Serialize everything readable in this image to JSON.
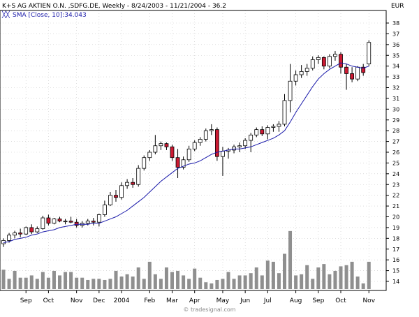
{
  "header": {
    "title": "K+S AG AKTIEN O.N. ,SDFG.DE, Weekly - 8/24/2003 - 11/21/2004 - 36.2",
    "sma_label": "SMA [Close, 10]:34.043",
    "currency": "EUR",
    "watermark": "© tradesignal.com"
  },
  "colors": {
    "up_candle": "#ffffff",
    "down_candle": "#cc1a33",
    "candle_outline": "#000000",
    "sma_line": "#1a1aaa",
    "volume_bar": "#8f8f8f",
    "grid": "#c8c8c8",
    "axis_label": "#000000",
    "sma_label": "#1a1aaa"
  },
  "chart_data": {
    "type": "candlestick",
    "title": "K+S AG AKTIEN O.N. ,SDFG.DE, Weekly - 8/24/2003 - 11/21/2004 - 36.2",
    "ylabel": "EUR",
    "ylim": [
      13,
      39
    ],
    "y_ticks": [
      14,
      15,
      16,
      17,
      18,
      19,
      20,
      21,
      22,
      23,
      24,
      25,
      26,
      27,
      28,
      29,
      30,
      31,
      32,
      33,
      34,
      35,
      36,
      37,
      38
    ],
    "x_tick_labels": [
      {
        "label": "Sep",
        "week": 4
      },
      {
        "label": "Oct",
        "week": 8
      },
      {
        "label": "Nov",
        "week": 13
      },
      {
        "label": "Dec",
        "week": 17
      },
      {
        "label": "2004",
        "week": 21
      },
      {
        "label": "Feb",
        "week": 26
      },
      {
        "label": "Mar",
        "week": 30
      },
      {
        "label": "Apr",
        "week": 34
      },
      {
        "label": "May",
        "week": 39
      },
      {
        "label": "Jun",
        "week": 43
      },
      {
        "label": "Jul",
        "week": 47
      },
      {
        "label": "Aug",
        "week": 52
      },
      {
        "label": "Sep",
        "week": 56
      },
      {
        "label": "Oct",
        "week": 60
      },
      {
        "label": "Nov",
        "week": 65
      }
    ],
    "grid": true,
    "series": [
      {
        "name": "K+S AG AKTIEN O.N.",
        "kind": "ohlc",
        "ohlc": [
          [
            17.5,
            18.0,
            17.2,
            17.8
          ],
          [
            17.8,
            18.5,
            17.6,
            18.3
          ],
          [
            18.3,
            18.7,
            18.0,
            18.5
          ],
          [
            18.5,
            18.9,
            18.1,
            18.4
          ],
          [
            18.4,
            19.1,
            18.3,
            19.0
          ],
          [
            19.0,
            19.3,
            18.4,
            18.6
          ],
          [
            18.6,
            19.1,
            18.5,
            18.9
          ],
          [
            18.9,
            20.1,
            18.8,
            19.9
          ],
          [
            19.9,
            20.2,
            19.2,
            19.4
          ],
          [
            19.4,
            19.9,
            19.3,
            19.8
          ],
          [
            19.8,
            20.0,
            19.5,
            19.6
          ],
          [
            19.6,
            19.8,
            19.3,
            19.6
          ],
          [
            19.6,
            20.0,
            19.4,
            19.5
          ],
          [
            19.5,
            19.8,
            19.0,
            19.2
          ],
          [
            19.2,
            19.6,
            19.0,
            19.4
          ],
          [
            19.4,
            19.8,
            19.2,
            19.6
          ],
          [
            19.6,
            19.9,
            19.2,
            19.5
          ],
          [
            19.5,
            20.3,
            19.1,
            20.2
          ],
          [
            20.2,
            21.5,
            20.0,
            21.1
          ],
          [
            21.1,
            22.3,
            21.0,
            22.0
          ],
          [
            22.0,
            22.5,
            21.4,
            21.8
          ],
          [
            21.8,
            23.2,
            21.6,
            22.9
          ],
          [
            22.9,
            23.5,
            22.6,
            23.2
          ],
          [
            23.2,
            23.6,
            22.7,
            23.0
          ],
          [
            23.0,
            24.8,
            22.8,
            24.5
          ],
          [
            24.5,
            25.7,
            24.3,
            25.5
          ],
          [
            25.5,
            26.2,
            25.2,
            26.0
          ],
          [
            26.0,
            27.6,
            25.8,
            26.6
          ],
          [
            26.6,
            27.0,
            26.2,
            26.8
          ],
          [
            26.8,
            26.9,
            26.2,
            26.5
          ],
          [
            26.5,
            26.7,
            25.2,
            25.5
          ],
          [
            25.5,
            26.3,
            23.6,
            24.6
          ],
          [
            24.6,
            25.6,
            24.4,
            25.3
          ],
          [
            25.3,
            26.6,
            25.1,
            26.3
          ],
          [
            26.3,
            27.1,
            26.1,
            26.9
          ],
          [
            26.9,
            27.4,
            26.6,
            27.2
          ],
          [
            27.2,
            28.2,
            27.0,
            28.0
          ],
          [
            28.0,
            28.6,
            27.6,
            28.1
          ],
          [
            28.1,
            28.3,
            25.2,
            25.6
          ],
          [
            25.6,
            26.5,
            23.8,
            26.1
          ],
          [
            26.1,
            26.4,
            25.4,
            26.2
          ],
          [
            26.2,
            26.7,
            25.9,
            26.5
          ],
          [
            26.5,
            26.9,
            26.0,
            26.6
          ],
          [
            26.6,
            27.3,
            26.3,
            27.1
          ],
          [
            27.1,
            27.8,
            26.0,
            27.6
          ],
          [
            27.6,
            28.3,
            27.4,
            28.1
          ],
          [
            28.1,
            28.4,
            27.5,
            27.7
          ],
          [
            27.7,
            28.5,
            27.2,
            28.3
          ],
          [
            28.3,
            28.6,
            27.9,
            28.4
          ],
          [
            28.4,
            28.9,
            27.9,
            28.6
          ],
          [
            28.6,
            31.4,
            28.4,
            30.8
          ],
          [
            30.8,
            34.2,
            29.7,
            32.6
          ],
          [
            32.6,
            33.6,
            32.2,
            33.2
          ],
          [
            33.2,
            34.1,
            32.9,
            33.5
          ],
          [
            33.5,
            34.2,
            33.1,
            33.8
          ],
          [
            33.8,
            34.9,
            33.6,
            34.6
          ],
          [
            34.6,
            35.0,
            34.2,
            34.8
          ],
          [
            34.8,
            34.9,
            33.7,
            34.0
          ],
          [
            34.0,
            35.1,
            33.8,
            34.9
          ],
          [
            34.9,
            35.4,
            34.5,
            35.1
          ],
          [
            35.1,
            35.3,
            33.3,
            33.9
          ],
          [
            33.9,
            34.2,
            31.8,
            33.3
          ],
          [
            33.3,
            33.9,
            32.5,
            32.8
          ],
          [
            32.8,
            34.0,
            32.6,
            33.9
          ],
          [
            33.9,
            34.2,
            33.1,
            33.4
          ],
          [
            34.2,
            36.4,
            34.0,
            36.2
          ]
        ]
      },
      {
        "name": "SMA [Close, 10]",
        "kind": "line",
        "values": [
          17.6,
          17.7,
          17.9,
          18.0,
          18.1,
          18.3,
          18.4,
          18.6,
          18.7,
          18.8,
          19.0,
          19.1,
          19.2,
          19.3,
          19.3,
          19.3,
          19.4,
          19.4,
          19.6,
          19.8,
          20.0,
          20.3,
          20.6,
          21.0,
          21.4,
          21.8,
          22.3,
          22.8,
          23.3,
          23.7,
          24.1,
          24.5,
          24.7,
          24.9,
          25.0,
          25.2,
          25.5,
          25.8,
          26.0,
          26.1,
          26.2,
          26.3,
          26.3,
          26.4,
          26.5,
          26.7,
          26.9,
          27.1,
          27.3,
          27.6,
          28.0,
          28.8,
          29.7,
          30.5,
          31.3,
          32.1,
          32.8,
          33.3,
          33.7,
          34.0,
          34.3,
          34.2,
          34.0,
          33.9,
          33.8,
          34.0
        ]
      },
      {
        "name": "Volume",
        "kind": "bar",
        "values": [
          1.7,
          0.9,
          1.6,
          1.0,
          1.0,
          1.2,
          0.9,
          1.5,
          1.0,
          1.6,
          1.2,
          1.5,
          1.5,
          1.0,
          1.0,
          0.8,
          0.9,
          0.9,
          0.8,
          0.9,
          1.6,
          1.1,
          1.3,
          1.1,
          1.9,
          0.9,
          2.4,
          1.3,
          0.9,
          1.9,
          1.5,
          1.6,
          1.2,
          0.9,
          1.8,
          1.0,
          0.6,
          0.5,
          0.8,
          0.9,
          1.5,
          0.9,
          1.2,
          1.2,
          1.4,
          1.9,
          1.2,
          2.5,
          2.4,
          1.4,
          3.1,
          5.1,
          1.2,
          1.3,
          2.1,
          0.9,
          1.9,
          2.2,
          1.3,
          1.6,
          2.0,
          2.1,
          2.4,
          1.1,
          0.5,
          2.4
        ]
      }
    ]
  }
}
